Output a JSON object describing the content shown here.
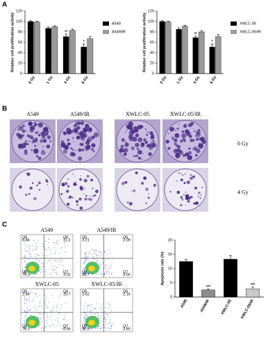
{
  "panels": {
    "a": "A",
    "b": "B",
    "c": "C"
  },
  "chart_data": [
    {
      "type": "bar",
      "ylabel": "Relative cell proliferation activity",
      "categories": [
        "0 Gy",
        "1 Gy",
        "4 Gy",
        "8 Gy"
      ],
      "series": [
        {
          "name": "A549",
          "color": "#000000",
          "values": [
            100,
            87,
            71,
            51
          ],
          "errors": [
            1.5,
            2.5,
            5,
            6
          ],
          "annotations": [
            null,
            null,
            "**",
            "*"
          ]
        },
        {
          "name": "A549/IR",
          "color": "#9a9a9a",
          "values": [
            99,
            90,
            83,
            67
          ],
          "errors": [
            1.5,
            2,
            2.5,
            4
          ],
          "annotations": [
            null,
            null,
            null,
            null
          ]
        }
      ],
      "ylim": [
        0,
        120
      ],
      "yticks": [
        0,
        20,
        40,
        60,
        80,
        100,
        120
      ],
      "legend": "right"
    },
    {
      "type": "bar",
      "ylabel": "Relative cell proliferation activity",
      "categories": [
        "0 Gy",
        "1 Gy",
        "4 Gy",
        "8 Gy"
      ],
      "series": [
        {
          "name": "XWLC-05",
          "color": "#000000",
          "values": [
            100,
            85,
            69,
            51
          ],
          "errors": [
            1.5,
            3,
            3,
            6
          ],
          "annotations": [
            null,
            null,
            "**",
            "*"
          ]
        },
        {
          "name": "XWLC-05/IR",
          "color": "#9a9a9a",
          "values": [
            99,
            91,
            80,
            71
          ],
          "errors": [
            1.5,
            2,
            2.5,
            4
          ],
          "annotations": [
            null,
            null,
            null,
            null
          ]
        }
      ],
      "ylim": [
        0,
        120
      ],
      "yticks": [
        0,
        20,
        40,
        60,
        80,
        100,
        120
      ],
      "legend": "right"
    },
    {
      "type": "bar",
      "ylabel": "Apoptosis rate (%)",
      "categories": [
        "A549",
        "A549/IR",
        "XWLC-05",
        "XWLC-05/IR"
      ],
      "values": [
        12.5,
        2.5,
        13.3,
        2.9
      ],
      "errors": [
        0.8,
        0.3,
        1.3,
        0.6
      ],
      "colors": [
        "#000000",
        "#8c8c8c",
        "#000000",
        "#c8c8c8"
      ],
      "annotations": [
        null,
        "***",
        null,
        "***"
      ],
      "ylim": [
        0,
        20
      ],
      "yticks": [
        0,
        5,
        10,
        15,
        20
      ]
    }
  ],
  "colony": {
    "columns": [
      "A549",
      "A549/IR",
      "XWLC-05",
      "XWLC-05/IR"
    ],
    "rows": [
      "0 Gy",
      "4 Gy"
    ]
  },
  "flow": [
    {
      "title": "A549",
      "quadrants": [
        [
          "Q5",
          "6.56"
        ],
        [
          "Q6",
          "11.3"
        ],
        [
          "Q8",
          "79.1"
        ],
        [
          "Q7",
          "3.02"
        ]
      ]
    },
    {
      "title": "A549/IR",
      "quadrants": [
        [
          "Q5",
          "3.21"
        ],
        [
          "Q6",
          "2.09"
        ],
        [
          "Q8",
          "91.7"
        ],
        [
          "Q7",
          "3.00"
        ]
      ]
    },
    {
      "title": "XWLC-05",
      "quadrants": [
        [
          "Q5",
          "2.34"
        ],
        [
          "Q6",
          "10.7"
        ],
        [
          "Q8",
          "78.3"
        ],
        [
          "Q7",
          "8.66"
        ]
      ]
    },
    {
      "title": "XWLC-05/IR",
      "quadrants": [
        [
          "Q5",
          "1.62"
        ],
        [
          "Q6",
          "2.16"
        ],
        [
          "Q8",
          "92.6"
        ],
        [
          "Q7",
          "3.60"
        ]
      ]
    }
  ]
}
